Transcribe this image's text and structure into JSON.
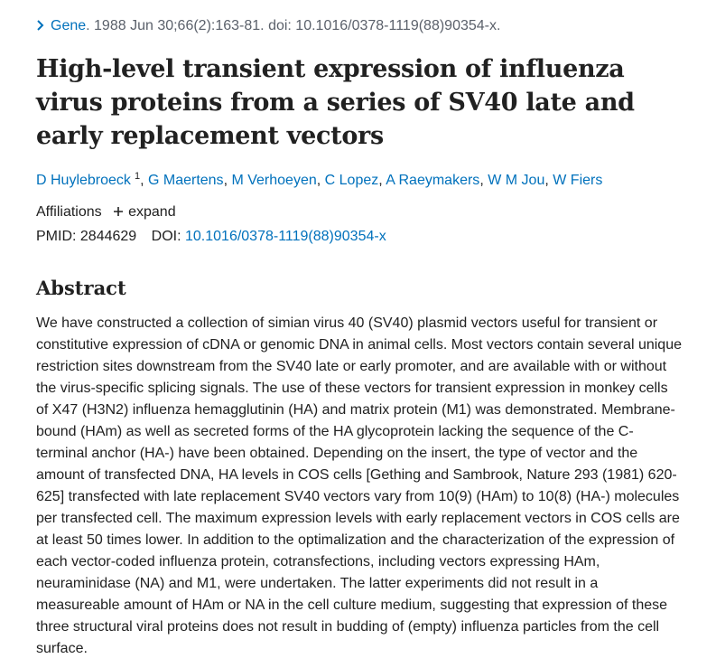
{
  "citation": {
    "journal": "Gene",
    "details": ". 1988 Jun 30;66(2):163-81. doi: 10.1016/0378-1119(88)90354-x."
  },
  "title": "High-level transient expression of influenza virus proteins from a series of SV40 late and early replacement vectors",
  "authors": {
    "separator": ",",
    "list": [
      {
        "name": "D Huylebroeck",
        "affiliation": "1"
      },
      {
        "name": "G Maertens"
      },
      {
        "name": "M Verhoeyen"
      },
      {
        "name": "C Lopez"
      },
      {
        "name": "A Raeymakers"
      },
      {
        "name": "W M Jou"
      },
      {
        "name": "W Fiers"
      }
    ]
  },
  "affiliations": {
    "label": "Affiliations",
    "toggle": "expand"
  },
  "identifiers": {
    "pmid_label": "PMID:",
    "pmid": "2844629",
    "doi_label": "DOI:",
    "doi": "10.1016/0378-1119(88)90354-x"
  },
  "abstract": {
    "heading": "Abstract",
    "text": "We have constructed a collection of simian virus 40 (SV40) plasmid vectors useful for transient or constitutive expression of cDNA or genomic DNA in animal cells. Most vectors contain several unique restriction sites downstream from the SV40 late or early promoter, and are available with or without the virus-specific splicing signals. The use of these vectors for transient expression in monkey cells of X47 (H3N2) influenza hemagglutinin (HA) and matrix protein (M1) was demonstrated. Membrane-bound (HAm) as well as secreted forms of the HA glycoprotein lacking the sequence of the C-terminal anchor (HA-) have been obtained. Depending on the insert, the type of vector and the amount of transfected DNA, HA levels in COS cells [Gething and Sambrook, Nature 293 (1981) 620-625] transfected with late replacement SV40 vectors vary from 10(9) (HAm) to 10(8) (HA-) molecules per transfected cell. The maximum expression levels with early replacement vectors in COS cells are at least 50 times lower. In addition to the optimalization and the characterization of the expression of each vector-coded influenza protein, cotransfections, including vectors expressing HAm, neuraminidase (NA) and M1, were undertaken. The latter experiments did not result in a measureable amount of HAm or NA in the cell culture medium, suggesting that expression of these three structural viral proteins does not result in budding of (empty) influenza particles from the cell surface."
  }
}
